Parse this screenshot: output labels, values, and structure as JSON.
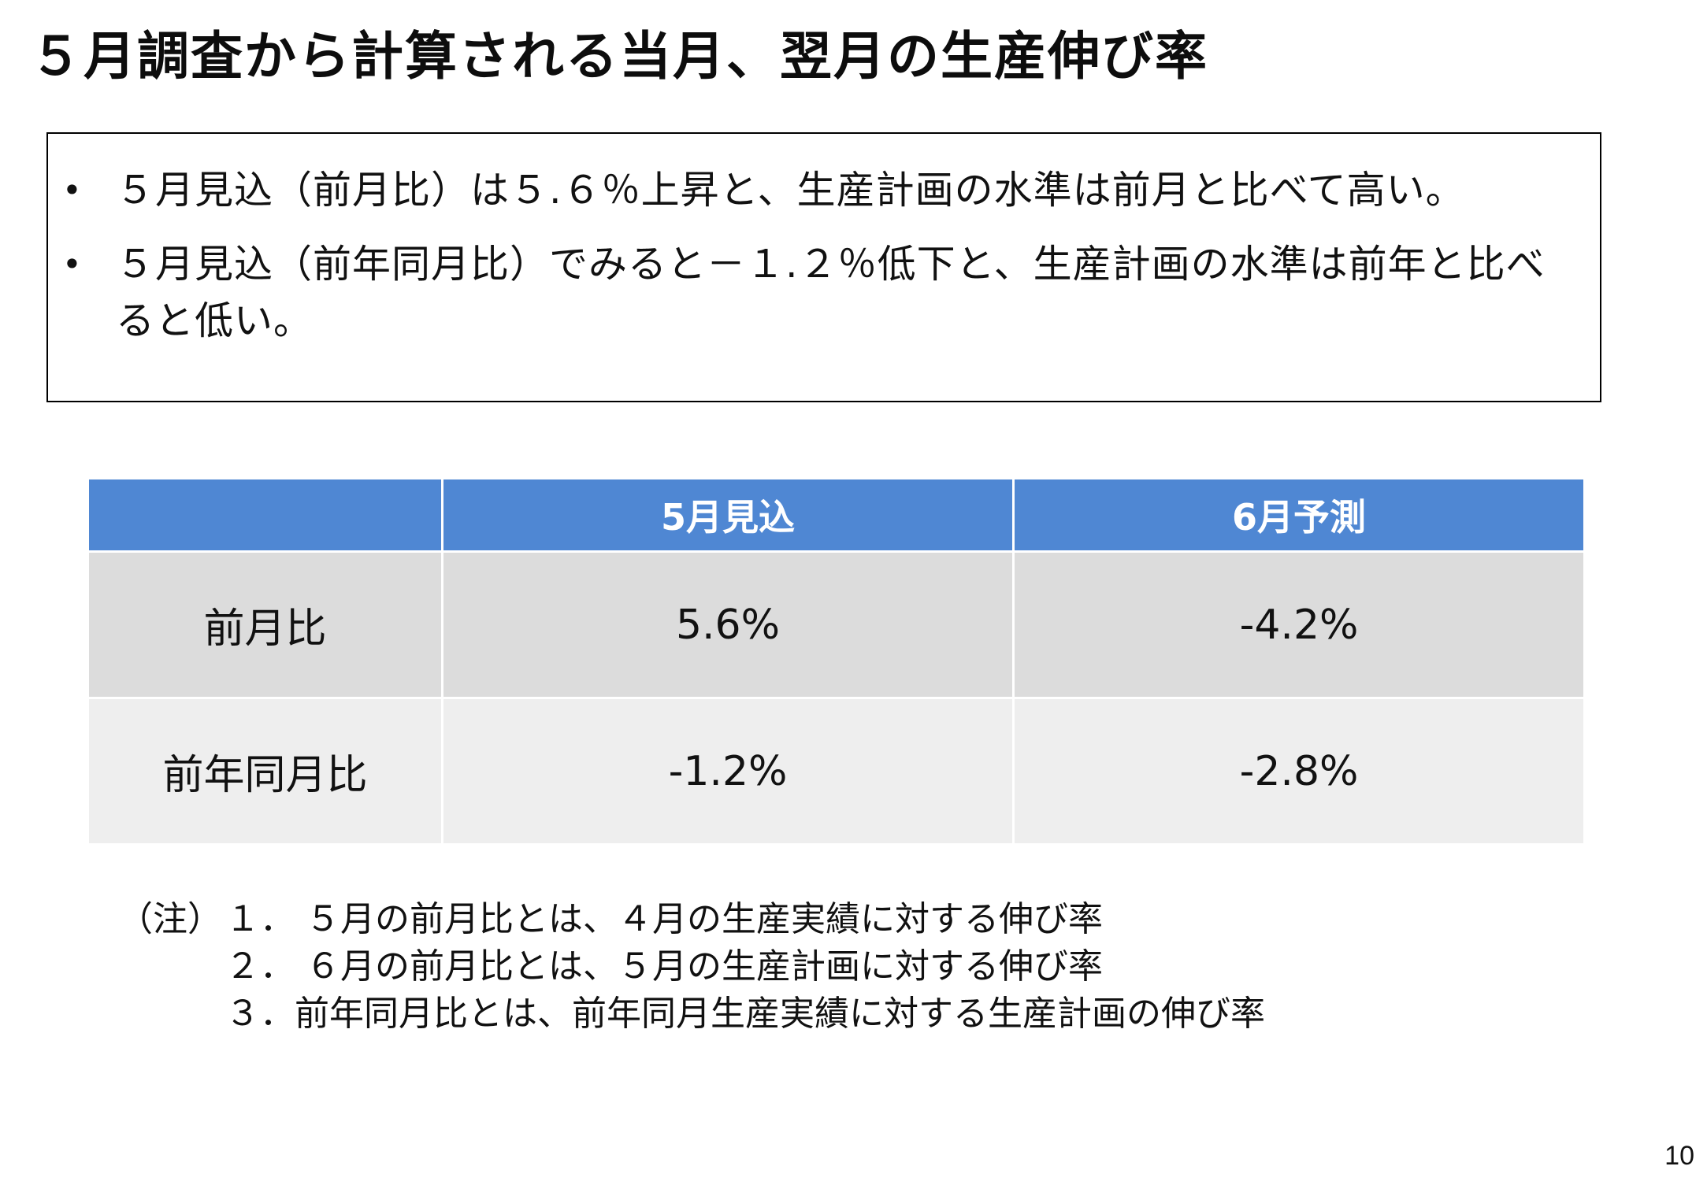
{
  "slide": {
    "title": "５月調査から計算される当月、翌月の生産伸び率",
    "page_number": "10"
  },
  "summary": {
    "bullet_symbol": "•",
    "bullets": [
      {
        "text": "５月見込（前月比）は５.６％上昇と、生産計画の水準は前月と比べて高い。"
      },
      {
        "text": "５月見込（前年同月比）でみると－１.２％低下と、生産計画の水準は前年と比べると低い。"
      }
    ]
  },
  "table": {
    "headers": [
      "",
      "5月見込",
      "6月予測"
    ],
    "rows": [
      {
        "label": "前月比",
        "values": [
          "5.6%",
          "-4.2%"
        ]
      },
      {
        "label": "前年同月比",
        "values": [
          "-1.2%",
          "-2.8%"
        ]
      }
    ],
    "colors": {
      "header_bg": "#4f87d3",
      "header_text": "#ffffff",
      "row1_bg": "#dcdcdc",
      "row2_bg": "#eeeeee"
    }
  },
  "notes": {
    "prefix": "（注）",
    "items": [
      "１． ５月の前月比とは、４月の生産実績に対する伸び率",
      "２． ６月の前月比とは、５月の生産計画に対する伸び率",
      "３．前年同月比とは、前年同月生産実績に対する生産計画の伸び率"
    ]
  }
}
